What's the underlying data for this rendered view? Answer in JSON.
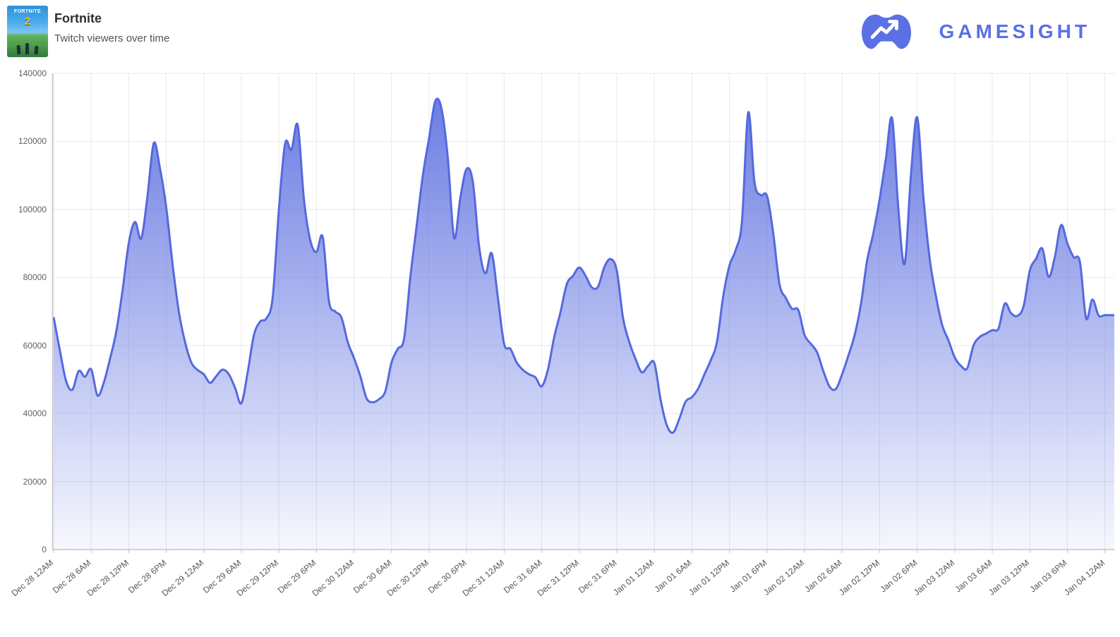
{
  "header": {
    "title": "Fortnite",
    "subtitle": "Twitch viewers over time",
    "cover_title": "FORTNITE",
    "cover_number": "2"
  },
  "brand": {
    "name": "GAMESIGHT",
    "color": "#5b70e4",
    "icon": "gamepad-trend-icon"
  },
  "chart_data": {
    "type": "area",
    "title": "Twitch viewers over time",
    "series_name": "Twitch viewers",
    "x_start_label": "Dec 28 12AM",
    "x_end_label": "Jan 04 12AM",
    "point_interval_hours": 1,
    "x_tick_interval_hours": 6,
    "x_tick_labels": [
      "Dec 28 12AM",
      "Dec 28 6AM",
      "Dec 28 12PM",
      "Dec 28 6PM",
      "Dec 29 12AM",
      "Dec 29 6AM",
      "Dec 29 12PM",
      "Dec 29 6PM",
      "Dec 30 12AM",
      "Dec 30 6AM",
      "Dec 30 12PM",
      "Dec 30 6PM",
      "Dec 31 12AM",
      "Dec 31 6AM",
      "Dec 31 12PM",
      "Dec 31 6PM",
      "Jan 01 12AM",
      "Jan 01 6AM",
      "Jan 01 12PM",
      "Jan 01 6PM",
      "Jan 02 12AM",
      "Jan 02 6AM",
      "Jan 02 12PM",
      "Jan 02 6PM",
      "Jan 03 12AM",
      "Jan 03 6AM",
      "Jan 03 12PM",
      "Jan 03 6PM",
      "Jan 04 12AM"
    ],
    "y_tick_values": [
      0,
      20000,
      40000,
      60000,
      80000,
      100000,
      120000,
      140000
    ],
    "ylim": [
      0,
      140000
    ],
    "grid": true,
    "legend": false,
    "line_color": "#5569de",
    "fill_top_color": "rgba(88,107,223,0.92)",
    "fill_bottom_color": "rgba(88,107,223,0.05)",
    "grid_color": "#e8e8ea",
    "axis_color": "#c4c4c6",
    "values": [
      68300,
      58500,
      49500,
      47000,
      52500,
      50800,
      53000,
      45300,
      49000,
      56000,
      64000,
      76000,
      90000,
      96300,
      91500,
      104000,
      119500,
      112000,
      100500,
      84000,
      70000,
      61000,
      55000,
      52800,
      51500,
      49000,
      51000,
      52900,
      51500,
      47500,
      43000,
      52000,
      63000,
      67000,
      68000,
      74000,
      100000,
      119400,
      117500,
      124800,
      103000,
      91000,
      87500,
      91900,
      73000,
      70000,
      68200,
      61000,
      56300,
      51000,
      44500,
      43300,
      44200,
      46500,
      55000,
      59000,
      62000,
      80000,
      95000,
      110000,
      121000,
      131900,
      129500,
      115000,
      91700,
      103500,
      111900,
      108000,
      89000,
      81200,
      87100,
      74000,
      60400,
      59000,
      55000,
      52800,
      51500,
      50600,
      48000,
      53000,
      62500,
      69800,
      78000,
      80500,
      82900,
      80500,
      77100,
      77300,
      83000,
      85400,
      82000,
      68000,
      61000,
      56000,
      52100,
      54000,
      54800,
      44000,
      36500,
      34400,
      38500,
      43500,
      44800,
      47300,
      51500,
      55600,
      61000,
      74400,
      83500,
      88100,
      96500,
      128500,
      108000,
      104200,
      104000,
      93000,
      78000,
      74000,
      70800,
      70400,
      63100,
      60500,
      58000,
      52500,
      47900,
      47200,
      51500,
      57000,
      63000,
      72000,
      85000,
      93000,
      103000,
      115000,
      126700,
      100000,
      84000,
      110000,
      127100,
      103500,
      85500,
      74500,
      66000,
      61500,
      56500,
      54000,
      53300,
      60000,
      62500,
      63500,
      64500,
      65000,
      72300,
      69500,
      68700,
      71500,
      82000,
      85500,
      88500,
      80200,
      86000,
      95400,
      90000,
      86000,
      84600,
      68000,
      73500,
      68800,
      68900
    ]
  }
}
